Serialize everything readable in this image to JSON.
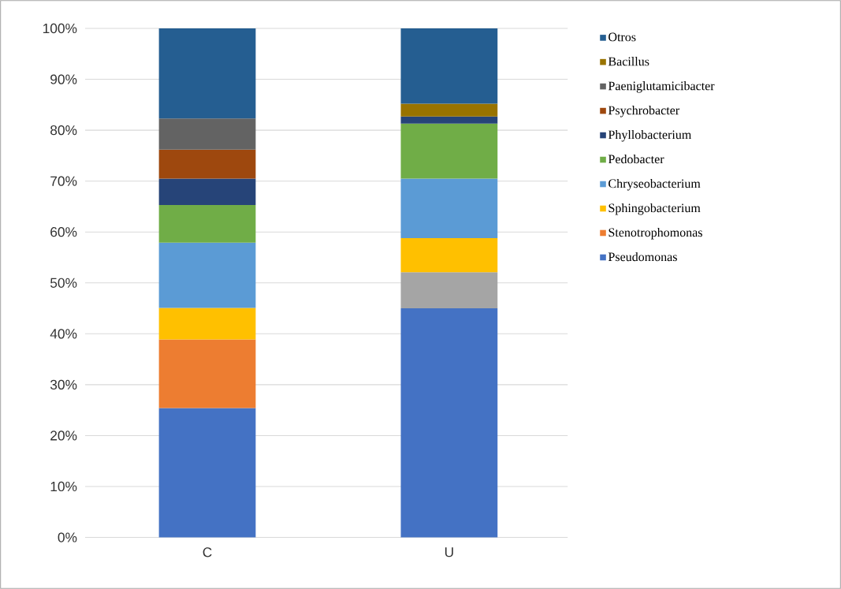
{
  "chart_data": {
    "type": "bar",
    "stacked": true,
    "categories": [
      "C",
      "U"
    ],
    "series": [
      {
        "name": "Pseudomonas",
        "color": "#4472c4",
        "values": [
          25.4,
          45.0
        ]
      },
      {
        "name": "Stenotrophomonas",
        "color": "#ed7d31",
        "values": [
          13.5,
          null
        ]
      },
      {
        "color": "#a5a5a5",
        "values": [
          null,
          7.1
        ]
      },
      {
        "name": "Sphingobacterium",
        "color": "#ffc000",
        "values": [
          6.2,
          6.7
        ]
      },
      {
        "name": "Chryseobacterium",
        "color": "#5b9bd5",
        "values": [
          12.8,
          11.7
        ]
      },
      {
        "name": "Pedobacter",
        "color": "#70ad47",
        "values": [
          7.4,
          10.8
        ]
      },
      {
        "name": "Phyllobacterium",
        "color": "#264478",
        "values": [
          5.2,
          1.4
        ]
      },
      {
        "name": "Psychrobacter",
        "color": "#9e480e",
        "values": [
          5.7,
          null
        ]
      },
      {
        "name": "Paeniglutamicibacter",
        "color": "#636363",
        "values": [
          6.1,
          null
        ]
      },
      {
        "name": "Bacillus",
        "color": "#997300",
        "values": [
          null,
          2.5
        ]
      },
      {
        "name": "Otros",
        "color": "#255e91",
        "values": [
          17.7,
          14.8
        ]
      }
    ],
    "ylim": [
      0,
      100
    ],
    "yticks": [
      {
        "value": 0,
        "label": "0%"
      },
      {
        "value": 10,
        "label": "10%"
      },
      {
        "value": 20,
        "label": "20%"
      },
      {
        "value": 30,
        "label": "30%"
      },
      {
        "value": 40,
        "label": "40%"
      },
      {
        "value": 50,
        "label": "50%"
      },
      {
        "value": 60,
        "label": "60%"
      },
      {
        "value": 70,
        "label": "70%"
      },
      {
        "value": 80,
        "label": "80%"
      },
      {
        "value": 90,
        "label": "90%"
      },
      {
        "value": 100,
        "label": "100%"
      }
    ],
    "grid": "y",
    "legend": "right"
  }
}
